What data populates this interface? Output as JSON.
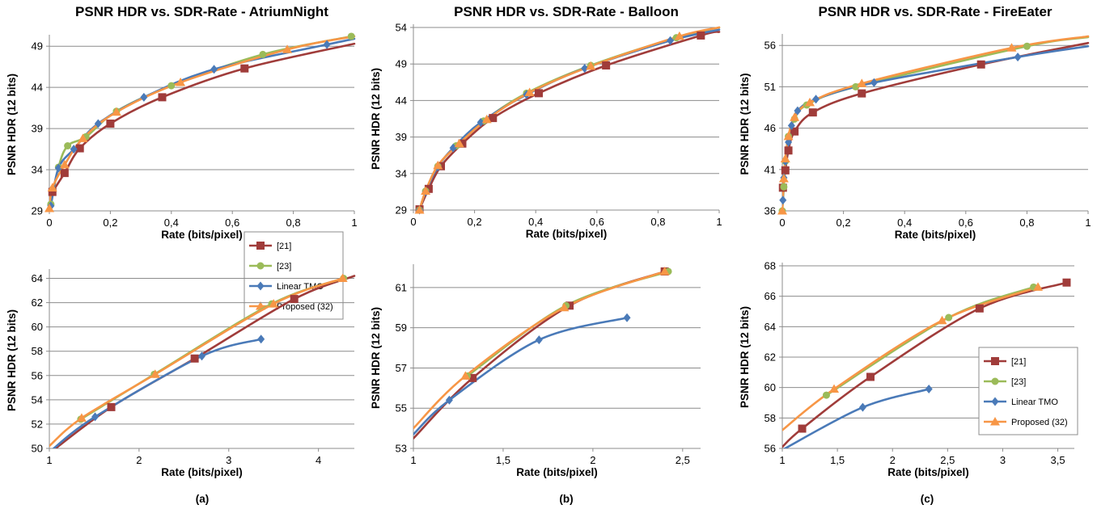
{
  "subcaptions": [
    "(a)",
    "(b)",
    "(c)"
  ],
  "series_colors": {
    "[21]": "#a03c3a",
    "[23]": "#9bbb59",
    "Linear TMO": "#4a7ab8",
    "Proposed (32)": "#f79646"
  },
  "series_markers": {
    "[21]": "square",
    "[23]": "circle",
    "Linear TMO": "diamond",
    "Proposed (32)": "triangle"
  },
  "chart_data": [
    {
      "type": "line",
      "title": "PSNR HDR vs. SDR-Rate - AtriumNight",
      "xlabel": "Rate (bits/pixel)",
      "ylabel": "PSNR HDR (12 bits)",
      "xlim": [
        0,
        1
      ],
      "ylim": [
        29,
        50
      ],
      "xticks": [
        0,
        0.2,
        0.4,
        0.6,
        0.8,
        1
      ],
      "xtick_labels": [
        "0",
        "0,2",
        "0,4",
        "0,6",
        "0,8",
        "1"
      ],
      "yticks": [
        29,
        34,
        39,
        44,
        49
      ],
      "ytick_labels": [
        "29",
        "34",
        "39",
        "44",
        "49"
      ],
      "grid": "horizontal",
      "legend": {
        "position": "right",
        "entries": [
          "[21]",
          "[23]",
          "Linear TMO",
          "Proposed (32)"
        ]
      },
      "series": [
        {
          "name": "[21]",
          "x": [
            0.01,
            0.05,
            0.1,
            0.2,
            0.37,
            0.64,
            1.0
          ],
          "y": [
            31.3,
            33.6,
            36.6,
            39.6,
            42.8,
            46.3,
            49.3
          ]
        },
        {
          "name": "[23]",
          "x": [
            0.005,
            0.03,
            0.06,
            0.12,
            0.22,
            0.4,
            0.7,
            0.99
          ],
          "y": [
            29.8,
            34.3,
            36.9,
            38.0,
            41.1,
            44.2,
            48.0,
            50.2
          ]
        },
        {
          "name": "Linear TMO",
          "x": [
            0.005,
            0.03,
            0.08,
            0.16,
            0.31,
            0.54,
            0.91,
            1.0
          ],
          "y": [
            29.6,
            34.2,
            36.5,
            39.6,
            42.8,
            46.2,
            49.2,
            49.9
          ]
        },
        {
          "name": "Proposed (32)",
          "x": [
            0.0,
            0.01,
            0.05,
            0.11,
            0.22,
            0.43,
            0.78,
            1.0
          ],
          "y": [
            29.3,
            31.8,
            34.6,
            37.8,
            41.0,
            44.6,
            48.6,
            50.2
          ]
        }
      ]
    },
    {
      "type": "line",
      "title": "PSNR HDR vs. SDR-Rate - Balloon",
      "xlabel": "Rate (bits/pixel)",
      "ylabel": "PSNR HDR (12 bits)",
      "xlim": [
        0,
        1
      ],
      "ylim": [
        29,
        54
      ],
      "xticks": [
        0,
        0.2,
        0.4,
        0.6,
        0.8,
        1
      ],
      "xtick_labels": [
        "0",
        "0,2",
        "0,4",
        "0,6",
        "0,8",
        "1"
      ],
      "yticks": [
        29,
        34,
        39,
        44,
        49,
        54
      ],
      "ytick_labels": [
        "29",
        "34",
        "39",
        "44",
        "49",
        "54"
      ],
      "grid": "horizontal",
      "series": [
        {
          "name": "[21]",
          "x": [
            0.02,
            0.05,
            0.09,
            0.16,
            0.26,
            0.41,
            0.63,
            0.94,
            1.0
          ],
          "y": [
            29.1,
            31.9,
            35.0,
            38.1,
            41.6,
            45.0,
            48.8,
            52.9,
            53.4
          ]
        },
        {
          "name": "[23]",
          "x": [
            0.02,
            0.04,
            0.08,
            0.14,
            0.23,
            0.37,
            0.58,
            0.86,
            1.0
          ],
          "y": [
            29.0,
            31.6,
            35.0,
            37.8,
            41.2,
            45.0,
            48.8,
            52.6,
            54.0
          ]
        },
        {
          "name": "Linear TMO",
          "x": [
            0.02,
            0.04,
            0.08,
            0.13,
            0.22,
            0.37,
            0.56,
            0.84,
            1.0
          ],
          "y": [
            29.0,
            31.5,
            34.9,
            37.5,
            41.0,
            44.8,
            48.4,
            52.2,
            53.7
          ]
        },
        {
          "name": "Proposed (32)",
          "x": [
            0.02,
            0.04,
            0.08,
            0.15,
            0.24,
            0.38,
            0.58,
            0.87,
            1.0
          ],
          "y": [
            29.0,
            31.6,
            35.1,
            38.1,
            41.4,
            45.1,
            48.7,
            52.8,
            54.0
          ]
        }
      ]
    },
    {
      "type": "line",
      "title": "PSNR HDR vs. SDR-Rate - FireEater",
      "xlabel": "Rate (bits/pixel)",
      "ylabel": "PSNR HDR (12 bits)",
      "xlim": [
        0,
        1
      ],
      "ylim": [
        36,
        57
      ],
      "xticks": [
        0,
        0.2,
        0.4,
        0.6,
        0.8,
        1
      ],
      "xtick_labels": [
        "0",
        "0,2",
        "0,4",
        "0,6",
        "0,8",
        "1"
      ],
      "yticks": [
        36,
        41,
        46,
        51,
        56
      ],
      "ytick_labels": [
        "36",
        "41",
        "46",
        "51",
        "56"
      ],
      "grid": "horizontal",
      "series": [
        {
          "name": "[21]",
          "x": [
            0.002,
            0.01,
            0.02,
            0.04,
            0.1,
            0.26,
            0.65,
            1.0
          ],
          "y": [
            38.8,
            40.9,
            43.3,
            45.6,
            47.9,
            50.2,
            53.7,
            56.3
          ]
        },
        {
          "name": "[23]",
          "x": [
            0.0,
            0.005,
            0.01,
            0.02,
            0.04,
            0.08,
            0.24,
            0.8,
            1.0
          ],
          "y": [
            36.0,
            38.9,
            42.0,
            45.0,
            47.1,
            48.8,
            51.0,
            55.9,
            57.0
          ]
        },
        {
          "name": "Linear TMO",
          "x": [
            0.002,
            0.005,
            0.01,
            0.02,
            0.03,
            0.05,
            0.11,
            0.3,
            0.77,
            1.0
          ],
          "y": [
            37.3,
            40.0,
            42.0,
            44.3,
            46.3,
            48.1,
            49.5,
            51.5,
            54.6,
            55.9
          ]
        },
        {
          "name": "Proposed (32)",
          "x": [
            0.0,
            0.005,
            0.01,
            0.02,
            0.04,
            0.09,
            0.26,
            0.75,
            1.0
          ],
          "y": [
            36.0,
            39.9,
            42.3,
            45.0,
            47.3,
            49.1,
            51.4,
            55.7,
            57.1
          ]
        }
      ]
    },
    {
      "type": "line",
      "xlabel": "Rate (bits/pixel)",
      "ylabel": "PSNR HDR (12 bits)",
      "xlim": [
        1,
        4.4
      ],
      "ylim": [
        50,
        64.5
      ],
      "xticks": [
        1,
        2,
        3,
        4
      ],
      "xtick_labels": [
        "1",
        "2",
        "3",
        "4"
      ],
      "yticks": [
        50,
        52,
        54,
        56,
        58,
        60,
        62,
        64
      ],
      "ytick_labels": [
        "50",
        "52",
        "54",
        "56",
        "58",
        "60",
        "62",
        "64"
      ],
      "grid": "horizontal",
      "series": [
        {
          "name": "[21]",
          "x": [
            1.0,
            1.69,
            2.62,
            3.73,
            4.4
          ],
          "y": [
            49.6,
            53.4,
            57.4,
            62.3,
            64.2
          ]
        },
        {
          "name": "[23]",
          "x": [
            1.35,
            2.17,
            3.48,
            4.28
          ],
          "y": [
            52.4,
            56.1,
            61.9,
            64.0
          ]
        },
        {
          "name": "Linear TMO",
          "x": [
            1.0,
            1.51,
            2.7,
            3.36
          ],
          "y": [
            49.7,
            52.6,
            57.6,
            59.0
          ]
        },
        {
          "name": "Proposed (32)",
          "x": [
            1.0,
            1.36,
            2.18,
            3.5,
            4.27
          ],
          "y": [
            50.2,
            52.5,
            56.1,
            61.9,
            64.0
          ]
        }
      ]
    },
    {
      "type": "line",
      "xlabel": "Rate (bits/pixel)",
      "ylabel": "PSNR HDR (12 bits)",
      "xlim": [
        1,
        2.6
      ],
      "ylim": [
        53,
        62
      ],
      "xticks": [
        1,
        1.5,
        2,
        2.5
      ],
      "xtick_labels": [
        "1",
        "1,5",
        "2",
        "2,5"
      ],
      "yticks": [
        53,
        55,
        57,
        59,
        61
      ],
      "ytick_labels": [
        "53",
        "55",
        "57",
        "59",
        "61"
      ],
      "grid": "horizontal",
      "series": [
        {
          "name": "[21]",
          "x": [
            1.0,
            1.33,
            1.87,
            2.4
          ],
          "y": [
            53.5,
            56.5,
            60.1,
            61.8
          ]
        },
        {
          "name": "[23]",
          "x": [
            1.3,
            1.85,
            2.42
          ],
          "y": [
            56.6,
            60.1,
            61.8
          ]
        },
        {
          "name": "Linear TMO",
          "x": [
            1.0,
            1.2,
            1.7,
            2.19
          ],
          "y": [
            53.7,
            55.4,
            58.4,
            59.5
          ]
        },
        {
          "name": "Proposed (32)",
          "x": [
            1.0,
            1.29,
            1.84,
            2.4
          ],
          "y": [
            54.0,
            56.6,
            60.0,
            61.8
          ]
        }
      ]
    },
    {
      "type": "line",
      "xlabel": "Rate (bits/pixel)",
      "ylabel": "PSNR HDR (12 bits)",
      "xlim": [
        1,
        3.65
      ],
      "ylim": [
        56,
        68
      ],
      "xticks": [
        1,
        1.5,
        2,
        2.5,
        3,
        3.5
      ],
      "xtick_labels": [
        "1",
        "1,5",
        "2",
        "2,5",
        "3",
        "3,5"
      ],
      "yticks": [
        56,
        58,
        60,
        62,
        64,
        66,
        68
      ],
      "ytick_labels": [
        "56",
        "58",
        "60",
        "62",
        "64",
        "66",
        "68"
      ],
      "grid": "horizontal",
      "legend": {
        "position": "right",
        "entries": [
          "[21]",
          "[23]",
          "Linear TMO",
          "Proposed (32)"
        ]
      },
      "series": [
        {
          "name": "[21]",
          "x": [
            1.0,
            1.18,
            1.8,
            2.79,
            3.58
          ],
          "y": [
            56.1,
            57.3,
            60.7,
            65.2,
            66.9
          ]
        },
        {
          "name": "[23]",
          "x": [
            1.4,
            2.51,
            3.28
          ],
          "y": [
            59.5,
            64.6,
            66.6
          ]
        },
        {
          "name": "Linear TMO",
          "x": [
            1.0,
            1.73,
            2.33
          ],
          "y": [
            55.9,
            58.7,
            59.9
          ]
        },
        {
          "name": "Proposed (32)",
          "x": [
            1.0,
            1.47,
            2.45,
            3.32
          ],
          "y": [
            57.2,
            59.9,
            64.4,
            66.6
          ]
        }
      ]
    }
  ]
}
